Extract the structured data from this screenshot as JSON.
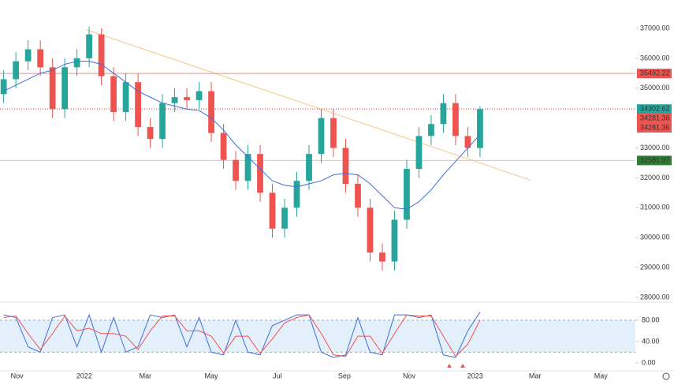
{
  "chart_data": [
    {
      "type": "candlestick",
      "up_color": "#26a69a",
      "down_color": "#ef5350",
      "xlim": [
        -0.3,
        52.3
      ],
      "ylim": [
        27920,
        37950
      ],
      "xticks": [
        {
          "value": 1.1,
          "label": "Nov"
        },
        {
          "value": 6.6,
          "label": "2022"
        },
        {
          "value": 11.6,
          "label": "Mar"
        },
        {
          "value": 17,
          "label": "May"
        },
        {
          "value": 22.4,
          "label": "Jul"
        },
        {
          "value": 27.9,
          "label": "Sep"
        },
        {
          "value": 33.2,
          "label": "Nov"
        },
        {
          "value": 38.6,
          "label": "2023"
        },
        {
          "value": 43.5,
          "label": "Mar"
        },
        {
          "value": 48.9,
          "label": "May"
        }
      ],
      "yticks": [
        {
          "value": 28000,
          "label": "28000.00"
        },
        {
          "value": 29000,
          "label": "29000.00"
        },
        {
          "value": 30000,
          "label": "30000.00"
        },
        {
          "value": 31000,
          "label": "31000.00"
        },
        {
          "value": 32000,
          "label": "32000.00"
        },
        {
          "value": 33000,
          "label": "33000.00"
        },
        {
          "value": 34000,
          "label": "34000.00"
        },
        {
          "value": 35000,
          "label": "35000.00"
        },
        {
          "value": 36000,
          "label": "36000.00"
        },
        {
          "value": 37000,
          "label": "37000.00"
        }
      ],
      "open": [
        34800,
        35300,
        35900,
        36300,
        35700,
        34300,
        35700,
        36000,
        36800,
        35400,
        34200,
        35200,
        33700,
        33300,
        34500,
        34700,
        34600,
        34900,
        33500,
        32600,
        31900,
        32800,
        31500,
        30300,
        31000,
        31900,
        32800,
        34000,
        33000,
        31800,
        31000,
        29500,
        29200,
        30600,
        32300,
        33400,
        33800,
        34500,
        33400,
        33000
      ],
      "high": [
        35600,
        36200,
        36600,
        36600,
        36000,
        36000,
        36300,
        37050,
        37000,
        35700,
        35500,
        35500,
        34000,
        34800,
        35000,
        35000,
        35200,
        35200,
        33800,
        32900,
        33100,
        33100,
        31800,
        31300,
        32200,
        33100,
        34300,
        34300,
        33300,
        32100,
        31300,
        29800,
        30900,
        32600,
        33700,
        34100,
        34800,
        34800,
        33700,
        34400
      ],
      "low": [
        34500,
        35000,
        35600,
        35400,
        34000,
        34000,
        35400,
        35700,
        35100,
        33900,
        33900,
        33400,
        33000,
        33000,
        34200,
        34300,
        34300,
        33200,
        32300,
        31600,
        31600,
        31200,
        30000,
        30000,
        30700,
        31600,
        32500,
        32700,
        31500,
        30700,
        29200,
        28900,
        28900,
        30300,
        32000,
        33100,
        33500,
        33100,
        32700,
        32700
      ],
      "close": [
        35300,
        35900,
        36300,
        35700,
        34300,
        35700,
        36000,
        36800,
        35400,
        34200,
        35200,
        33700,
        33300,
        34500,
        34700,
        34600,
        34900,
        33500,
        32600,
        31900,
        32800,
        31500,
        30300,
        31000,
        31900,
        32800,
        34000,
        33000,
        31800,
        31000,
        29500,
        29200,
        30600,
        32300,
        33400,
        33800,
        34500,
        33400,
        33000,
        34300
      ],
      "moving_average": {
        "color": "#3f6fd8",
        "values": [
          34900,
          35100,
          35300,
          35500,
          35600,
          35800,
          35900,
          35900,
          35800,
          35500,
          35200,
          34900,
          34700,
          34500,
          34400,
          34300,
          34250,
          34000,
          33600,
          33100,
          32700,
          32300,
          31900,
          31750,
          31700,
          31800,
          31900,
          32100,
          32150,
          32100,
          31800,
          31400,
          31000,
          30950,
          31200,
          31600,
          32100,
          32550,
          33000,
          33450
        ]
      },
      "trendline": {
        "color": "#f5c58a",
        "x": [
          6.8,
          43.1
        ],
        "values": [
          36950,
          31930
        ]
      },
      "levels": [
        {
          "value": 35492.22,
          "color": "#f28b82",
          "label_color": "#ef5350",
          "style": "solid"
        },
        {
          "value": 34302.62,
          "color": "#d32f2f",
          "label_color": "#26a69a",
          "style": "dotted"
        },
        {
          "value": 32581.97,
          "color": "#e6c89a",
          "label_color": "#2e7d32",
          "style": "solid"
        }
      ],
      "price_labels": [
        {
          "value": 34281.36,
          "color": "#ef5350"
        },
        {
          "value": 34281.36,
          "color": "#ef5350"
        }
      ]
    },
    {
      "type": "line",
      "xlim": [
        -0.3,
        52.3
      ],
      "ylim": [
        -15,
        111
      ],
      "band": [
        20,
        80
      ],
      "band_color": "#e3f0fc",
      "yticks": [
        {
          "value": 0,
          "label": "0.00"
        },
        {
          "value": 40,
          "label": "40.00"
        },
        {
          "value": 80,
          "label": "80.00"
        }
      ],
      "series": [
        {
          "color": "#3f6fd8",
          "values": [
            90,
            85,
            30,
            20,
            85,
            90,
            30,
            90,
            20,
            85,
            20,
            30,
            90,
            85,
            90,
            30,
            85,
            20,
            15,
            80,
            20,
            15,
            70,
            80,
            90,
            90,
            20,
            10,
            15,
            85,
            20,
            15,
            90,
            90,
            85,
            90,
            15,
            10,
            60,
            95
          ]
        },
        {
          "color": "#ef5350",
          "values": [
            85,
            88,
            55,
            25,
            55,
            88,
            60,
            65,
            55,
            55,
            50,
            25,
            60,
            88,
            88,
            60,
            60,
            50,
            18,
            50,
            50,
            18,
            45,
            75,
            85,
            90,
            55,
            15,
            12,
            50,
            50,
            18,
            55,
            90,
            88,
            88,
            50,
            12,
            35,
            80
          ]
        }
      ]
    }
  ]
}
